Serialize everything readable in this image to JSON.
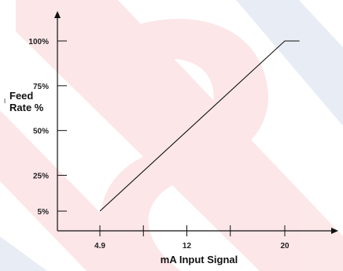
{
  "chart_data": {
    "type": "line",
    "title": "",
    "xlabel": "mA Input Signal",
    "ylabel_lines": [
      "Feed",
      "Rate %"
    ],
    "ylabel_side_mark": "I",
    "x_ticks": [
      4.9,
      8.45,
      12,
      15.55,
      20
    ],
    "x_tick_labels": [
      {
        "value": 4.9,
        "label": "4.9"
      },
      {
        "value": 12,
        "label": "12"
      },
      {
        "value": 20,
        "label": "20"
      }
    ],
    "y_tick_labels": [
      {
        "value": 5,
        "label": "5%"
      },
      {
        "value": 25,
        "label": "25%"
      },
      {
        "value": 50,
        "label": "50%"
      },
      {
        "value": 75,
        "label": "75%"
      },
      {
        "value": 100,
        "label": "100%"
      }
    ],
    "xlim": [
      0,
      25
    ],
    "ylim": [
      -5,
      120
    ],
    "series": [
      {
        "points": [
          [
            4.9,
            5
          ],
          [
            20,
            100
          ],
          [
            21.2,
            100
          ]
        ]
      }
    ],
    "grid": false,
    "legend": "none",
    "colors": {
      "line": "#111111",
      "axis": "#111111",
      "watermark_red": "#e6192b",
      "watermark_blue": "#2c5aa6"
    }
  }
}
